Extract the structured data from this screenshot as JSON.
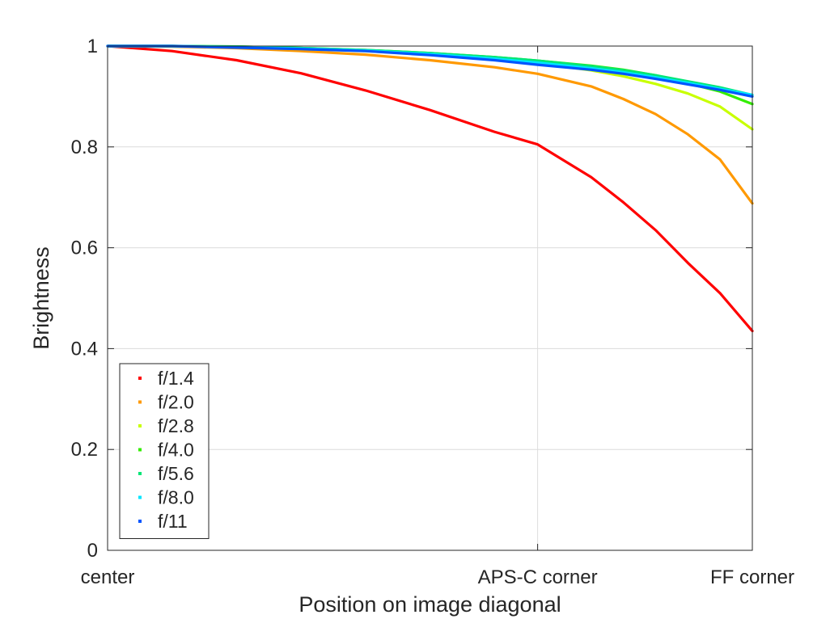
{
  "chart_data": {
    "type": "line",
    "title": "",
    "xlabel": "Position on image diagonal",
    "ylabel": "Brightness",
    "xlim": [
      0,
      1
    ],
    "ylim": [
      0,
      1
    ],
    "x_ticks": [
      {
        "value": 0,
        "label": "center"
      },
      {
        "value": 0.667,
        "label": "APS-C corner"
      },
      {
        "value": 1,
        "label": "FF corner"
      }
    ],
    "y_ticks": [
      {
        "value": 0,
        "label": "0"
      },
      {
        "value": 0.2,
        "label": "0.2"
      },
      {
        "value": 0.4,
        "label": "0.4"
      },
      {
        "value": 0.6,
        "label": "0.6"
      },
      {
        "value": 0.8,
        "label": "0.8"
      },
      {
        "value": 1,
        "label": "1"
      }
    ],
    "grid": true,
    "legend_position": "bottom-left",
    "x": [
      0,
      0.1,
      0.2,
      0.3,
      0.4,
      0.5,
      0.6,
      0.667,
      0.75,
      0.8,
      0.85,
      0.9,
      0.95,
      1.0
    ],
    "series": [
      {
        "name": "f/1.4",
        "color": "#ff0000",
        "values": [
          1.0,
          0.99,
          0.972,
          0.946,
          0.912,
          0.873,
          0.83,
          0.805,
          0.74,
          0.69,
          0.635,
          0.57,
          0.51,
          0.435
        ]
      },
      {
        "name": "f/2.0",
        "color": "#ff9900",
        "values": [
          1.0,
          0.999,
          0.996,
          0.99,
          0.983,
          0.972,
          0.958,
          0.945,
          0.92,
          0.895,
          0.865,
          0.825,
          0.775,
          0.688
        ]
      },
      {
        "name": "f/2.8",
        "color": "#c8ff00",
        "values": [
          1.0,
          1.0,
          0.998,
          0.995,
          0.99,
          0.983,
          0.974,
          0.966,
          0.952,
          0.94,
          0.925,
          0.906,
          0.88,
          0.835
        ]
      },
      {
        "name": "f/4.0",
        "color": "#33ee00",
        "values": [
          1.0,
          1.0,
          0.999,
          0.996,
          0.992,
          0.986,
          0.978,
          0.971,
          0.961,
          0.953,
          0.942,
          0.926,
          0.91,
          0.885
        ]
      },
      {
        "name": "f/5.6",
        "color": "#00e676",
        "values": [
          1.0,
          1.0,
          0.999,
          0.996,
          0.992,
          0.986,
          0.978,
          0.971,
          0.96,
          0.952,
          0.942,
          0.93,
          0.918,
          0.903
        ]
      },
      {
        "name": "f/8.0",
        "color": "#00e5ff",
        "values": [
          1.0,
          1.0,
          0.998,
          0.995,
          0.991,
          0.984,
          0.975,
          0.967,
          0.956,
          0.948,
          0.938,
          0.927,
          0.915,
          0.903
        ]
      },
      {
        "name": "f/11",
        "color": "#0055ff",
        "values": [
          1.0,
          1.0,
          0.997,
          0.994,
          0.99,
          0.982,
          0.972,
          0.963,
          0.953,
          0.945,
          0.935,
          0.924,
          0.913,
          0.9
        ]
      }
    ]
  }
}
